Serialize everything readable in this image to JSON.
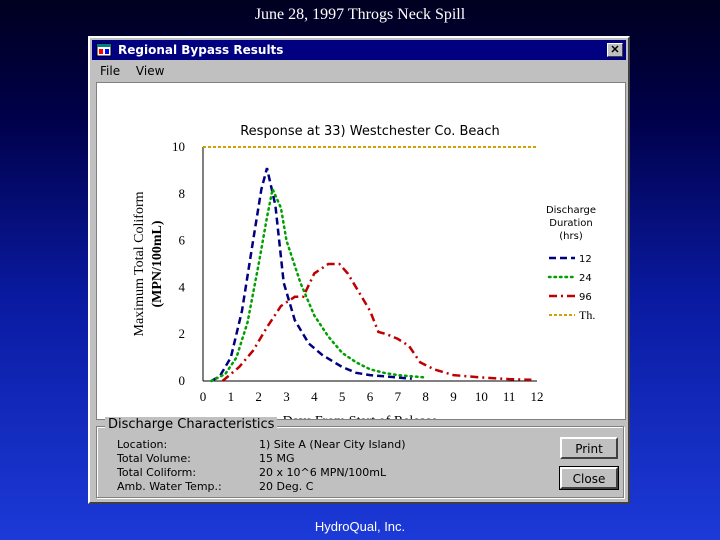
{
  "slide": {
    "title": "June 28, 1997 Throgs Neck Spill",
    "footer": "HydroQual, Inc."
  },
  "window": {
    "title": "Regional Bypass Results",
    "close_glyph": "✕",
    "menu": [
      "File",
      "View"
    ]
  },
  "chart_data": {
    "type": "line",
    "title": "Response at 33) Westchester Co. Beach",
    "xlabel": "Days From Start of Release",
    "ylabel_line1": "Maximum Total Coliform",
    "ylabel_line2": "(MPN/100mL)",
    "xlim": [
      0,
      12
    ],
    "ylim": [
      0,
      10
    ],
    "xticks": [
      "0",
      "1",
      "2",
      "3",
      "4",
      "5",
      "6",
      "7",
      "8",
      "9",
      "10",
      "11",
      "12"
    ],
    "yticks": [
      "0",
      "2",
      "4",
      "6",
      "8",
      "10"
    ],
    "legend_title": [
      "Discharge",
      "Duration",
      "(hrs)"
    ],
    "legend_position": "right",
    "series": [
      {
        "name": "12",
        "color": "#000080",
        "style": "dashed",
        "x": [
          0.3,
          0.6,
          1.0,
          1.4,
          1.8,
          2.1,
          2.3,
          2.6,
          2.9,
          3.3,
          3.8,
          4.3,
          5.0,
          5.5,
          6.0,
          6.5,
          7.0,
          7.5
        ],
        "y": [
          0.0,
          0.2,
          1.0,
          3.0,
          6.0,
          8.2,
          9.1,
          7.5,
          4.2,
          2.6,
          1.6,
          1.1,
          0.6,
          0.35,
          0.25,
          0.2,
          0.15,
          0.1
        ]
      },
      {
        "name": "24",
        "color": "#00a000",
        "style": "dotted",
        "x": [
          0.3,
          0.8,
          1.2,
          1.6,
          2.0,
          2.3,
          2.5,
          2.8,
          3.0,
          3.5,
          4.0,
          4.5,
          5.0,
          5.5,
          6.0,
          6.5,
          7.0,
          7.5,
          8.0
        ],
        "y": [
          0.0,
          0.3,
          1.0,
          2.5,
          5.0,
          7.0,
          8.2,
          7.4,
          6.0,
          4.2,
          2.8,
          1.9,
          1.2,
          0.8,
          0.5,
          0.35,
          0.25,
          0.2,
          0.15
        ]
      },
      {
        "name": "96",
        "color": "#c00000",
        "style": "dashdot",
        "x": [
          0.7,
          1.3,
          1.8,
          2.3,
          2.8,
          3.3,
          3.6,
          4.0,
          4.5,
          4.9,
          5.2,
          5.6,
          6.0,
          6.3,
          6.6,
          7.0,
          7.4,
          7.8,
          8.3,
          9.0,
          10.0,
          11.0,
          11.8
        ],
        "y": [
          0.0,
          0.6,
          1.3,
          2.3,
          3.2,
          3.6,
          3.6,
          4.6,
          5.0,
          5.0,
          4.6,
          3.8,
          3.0,
          2.1,
          2.0,
          1.8,
          1.5,
          0.8,
          0.5,
          0.25,
          0.15,
          0.08,
          0.05
        ]
      },
      {
        "name": "Th.",
        "color": "#d4a000",
        "style": "threshold",
        "x": [
          0,
          12
        ],
        "y": [
          10,
          10
        ]
      }
    ]
  },
  "discharge": {
    "heading": "Discharge Characteristics",
    "rows": [
      {
        "label": "Location:",
        "value": "1) Site A (Near City Island)"
      },
      {
        "label": "Total Volume:",
        "value": "15 MG"
      },
      {
        "label": "Total Coliform:",
        "value": "20 x 10^6 MPN/100mL"
      },
      {
        "label": "Amb. Water Temp.:",
        "value": "20 Deg. C"
      }
    ],
    "print_label": "Print",
    "close_label": "Close"
  }
}
